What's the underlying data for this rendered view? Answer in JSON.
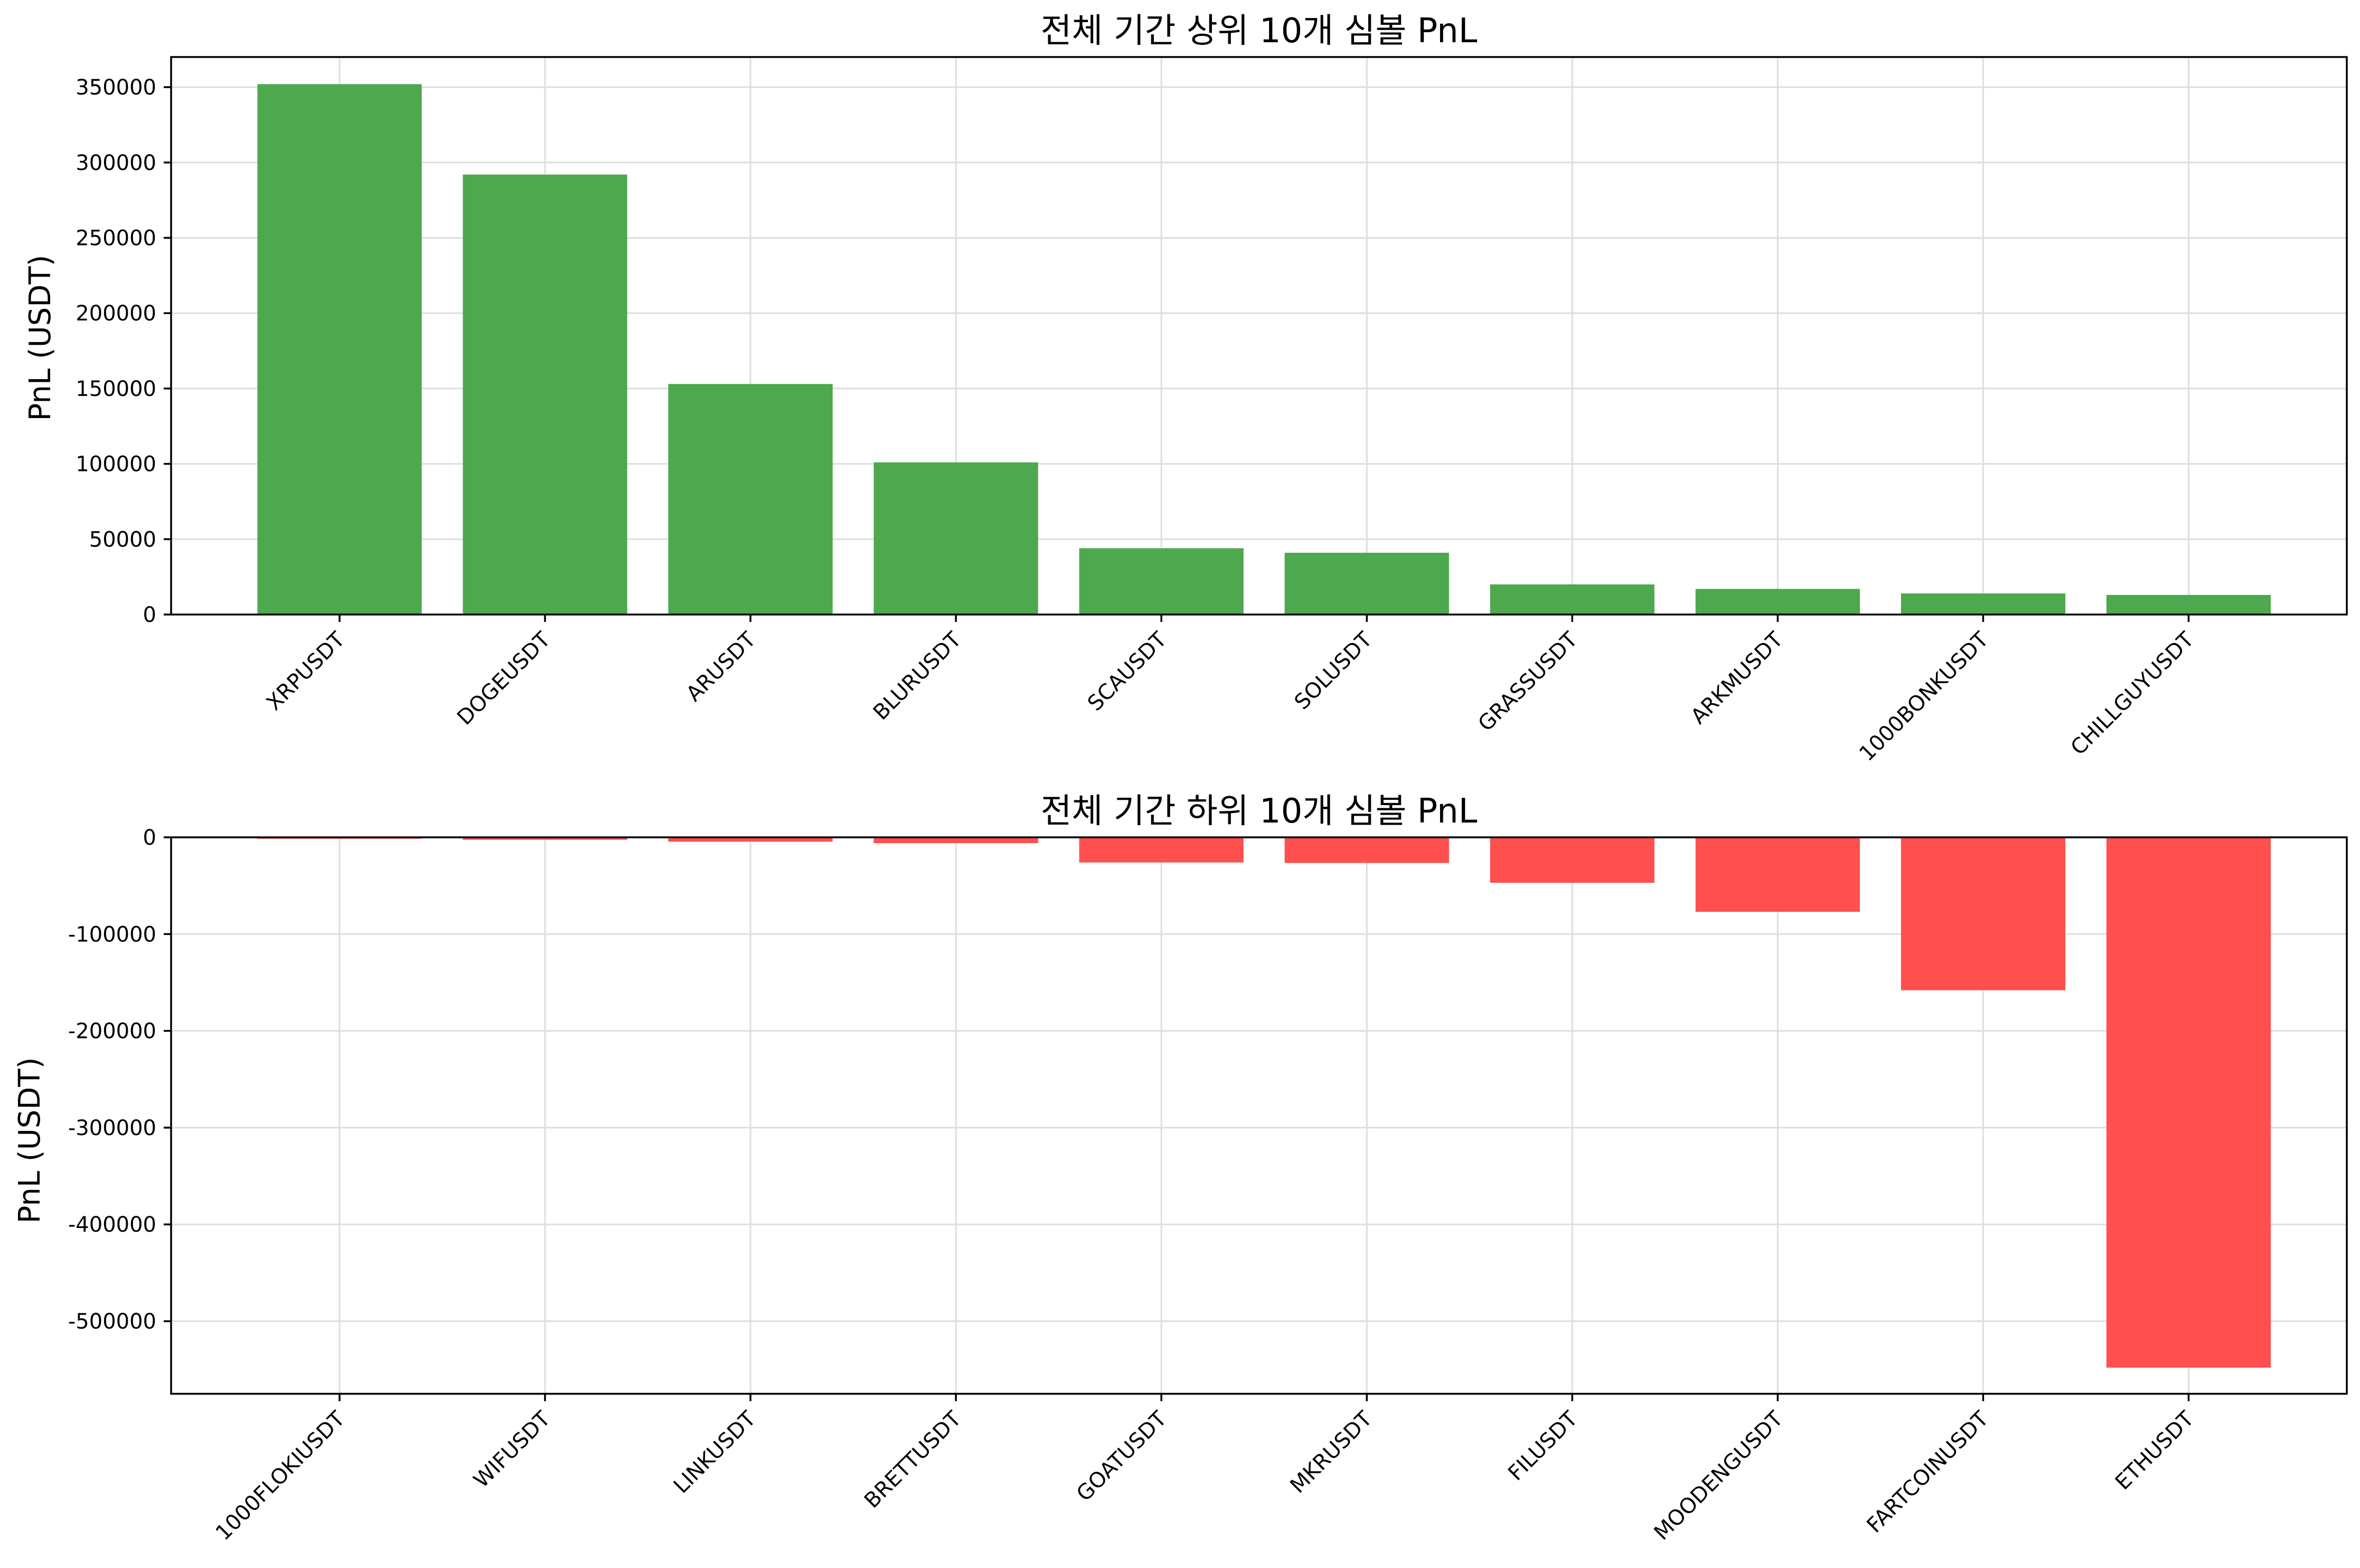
{
  "chart_data": [
    {
      "type": "bar",
      "title": "전체 기간 상위 10개 심볼 PnL",
      "xlabel": "",
      "ylabel": "PnL (USDT)",
      "categories": [
        "XRPUSDT",
        "DOGEUSDT",
        "ARUSDT",
        "BLURUSDT",
        "SCAUSDT",
        "SOLUSDT",
        "GRASSUSDT",
        "ARKMUSDT",
        "1000BONKUSDT",
        "CHILLGUYUSDT"
      ],
      "values": [
        352000,
        292000,
        153000,
        101000,
        44000,
        41000,
        20000,
        17000,
        14000,
        13000
      ],
      "ylim": [
        0,
        370000
      ],
      "yticks": [
        0,
        50000,
        100000,
        150000,
        200000,
        250000,
        300000,
        350000
      ],
      "ytick_labels": [
        "0",
        "50000",
        "100000",
        "150000",
        "200000",
        "250000",
        "300000",
        "350000"
      ],
      "bar_color": "#4ea84e",
      "grid": true
    },
    {
      "type": "bar",
      "title": "전체 기간 하위 10개 심볼 PnL",
      "xlabel": "",
      "ylabel": "PnL (USDT)",
      "categories": [
        "1000FLOKIUSDT",
        "WIFUSDT",
        "LINKUSDT",
        "BRETTUSDT",
        "GOATUSDT",
        "MKRUSDT",
        "FILUSDT",
        "MOODENGUSDT",
        "FARTCOINUSDT",
        "ETHUSDT"
      ],
      "values": [
        -1500,
        -2500,
        -4500,
        -6000,
        -26000,
        -26500,
        -47000,
        -77000,
        -158000,
        -548000
      ],
      "ylim": [
        -575000,
        0
      ],
      "yticks": [
        0,
        -100000,
        -200000,
        -300000,
        -400000,
        -500000
      ],
      "ytick_labels": [
        "0",
        "-100000",
        "-200000",
        "-300000",
        "-400000",
        "-500000"
      ],
      "bar_color": "#ff4f4f",
      "grid": true
    }
  ]
}
